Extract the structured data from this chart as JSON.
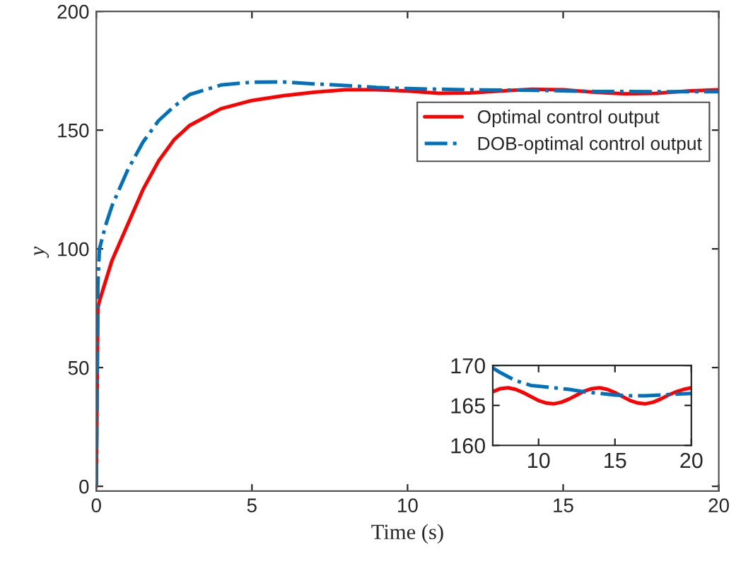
{
  "chart_data": [
    {
      "type": "line",
      "xlabel": "Time (s)",
      "ylabel": "y",
      "xlim": [
        0,
        20
      ],
      "ylim": [
        -2,
        200
      ],
      "xticks": [
        0,
        5,
        10,
        15,
        20
      ],
      "yticks": [
        0,
        50,
        100,
        150,
        200
      ],
      "legend": "top right",
      "grid": false,
      "series": [
        {
          "name": "Optimal control output",
          "color": "#ff0000",
          "line_style": "solid",
          "x": [
            0,
            0.05,
            0.1,
            0.5,
            1,
            1.5,
            2,
            2.5,
            3,
            4,
            5,
            6,
            7,
            8,
            9,
            10,
            11,
            12,
            13,
            14,
            15,
            16,
            17,
            18,
            19,
            20
          ],
          "values": [
            0,
            75,
            78,
            95,
            110,
            125,
            137,
            146,
            152,
            159,
            162.5,
            164.5,
            166,
            167,
            167,
            166.5,
            165.5,
            165.7,
            166.5,
            167.2,
            167,
            166,
            165.3,
            165.5,
            166.5,
            167
          ]
        },
        {
          "name": "DOB-optimal control output",
          "color": "#0072bd",
          "line_style": "dashdot",
          "x": [
            0,
            0.05,
            0.1,
            0.3,
            0.5,
            1,
            1.5,
            2,
            2.5,
            3,
            4,
            5,
            6,
            7,
            8,
            9,
            10,
            12,
            14,
            16,
            18,
            20
          ],
          "values": [
            0,
            85,
            100,
            110,
            118,
            133,
            145,
            154,
            160,
            165,
            169,
            170.2,
            170.3,
            169.5,
            168.8,
            168,
            167.5,
            167,
            166.8,
            166.3,
            166.2,
            166.2
          ]
        }
      ]
    },
    {
      "type": "line",
      "xlim": [
        7,
        20
      ],
      "ylim": [
        160,
        170
      ],
      "xticks": [
        10,
        15,
        20
      ],
      "yticks": [
        160,
        165,
        170
      ],
      "series": [
        {
          "color": "#ff0000",
          "line_style": "solid",
          "x": [
            7,
            7.5,
            8,
            8.5,
            9,
            9.5,
            10,
            10.5,
            11,
            11.5,
            12,
            12.5,
            13,
            13.5,
            14,
            14.5,
            15,
            15.5,
            16,
            16.5,
            17,
            17.5,
            18,
            18.5,
            19,
            19.5,
            20
          ],
          "values": [
            166.7,
            167.1,
            167.2,
            167,
            166.6,
            166.1,
            165.6,
            165.3,
            165.2,
            165.4,
            165.8,
            166.3,
            166.8,
            167.1,
            167.2,
            167,
            166.6,
            166.1,
            165.6,
            165.3,
            165.2,
            165.4,
            165.8,
            166.3,
            166.7,
            167,
            167.2
          ]
        },
        {
          "color": "#0072bd",
          "line_style": "dashdot",
          "x": [
            7,
            7.5,
            8,
            8.5,
            9,
            9.5,
            10,
            11,
            12,
            13,
            14,
            15,
            16,
            17,
            18,
            19,
            20
          ],
          "values": [
            169.7,
            169.1,
            168.6,
            168.1,
            167.8,
            167.5,
            167.4,
            167.2,
            167,
            166.7,
            166.5,
            166.3,
            166.2,
            166.2,
            166.3,
            166.4,
            166.5
          ]
        }
      ]
    }
  ]
}
